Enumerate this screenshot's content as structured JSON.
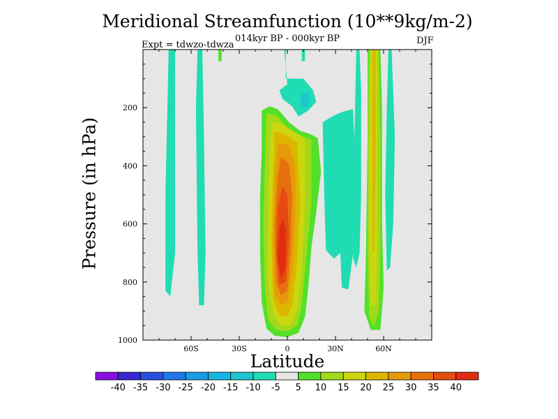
{
  "chart_data": {
    "type": "heatmap",
    "title": "Meridional Streamfunction (10**9kg/m-2)",
    "subtitle": "014kyr BP - 000kyr BP",
    "left_note": "Expt = tdwzo-tdwza",
    "right_note": "DJF",
    "xlabel": "Latitude",
    "ylabel": "Pressure (in hPa)",
    "xlim": [
      -90,
      90
    ],
    "ylim": [
      0,
      1000
    ],
    "y_inverted": true,
    "x_ticks": [
      {
        "value": -60,
        "label": "60S"
      },
      {
        "value": -30,
        "label": "30S"
      },
      {
        "value": 0,
        "label": "0"
      },
      {
        "value": 30,
        "label": "30N"
      },
      {
        "value": 60,
        "label": "60N"
      }
    ],
    "y_ticks": [
      {
        "value": 200,
        "label": "200"
      },
      {
        "value": 400,
        "label": "400"
      },
      {
        "value": 600,
        "label": "600"
      },
      {
        "value": 800,
        "label": "800"
      },
      {
        "value": 1000,
        "label": "1000"
      }
    ],
    "background_color": "#e6e6e6",
    "contour_levels": [
      -40,
      -35,
      -30,
      -25,
      -20,
      -15,
      -10,
      -5,
      5,
      10,
      15,
      20,
      25,
      30,
      35,
      40
    ],
    "colorbar_colors": [
      "#8810e0",
      "#3526d6",
      "#2a4fe0",
      "#1e7be6",
      "#1c9ce8",
      "#16b6e0",
      "#1cc6cf",
      "#20dcb2",
      "#e6e6e6",
      "#52e02a",
      "#a2da1a",
      "#cad70f",
      "#ddb600",
      "#e69a0a",
      "#e7700e",
      "#e54a10",
      "#e02c10"
    ],
    "features": [
      {
        "name": "SH polar column",
        "level": -5,
        "color": "#20dcb2",
        "points": [
          [
            -74,
            0
          ],
          [
            -70,
            0
          ],
          [
            -70,
            700
          ],
          [
            -73,
            850
          ],
          [
            -76,
            830
          ],
          [
            -76,
            500
          ]
        ]
      },
      {
        "name": "SH midlat column",
        "level": -5,
        "color": "#20dcb2",
        "points": [
          [
            -56,
            0
          ],
          [
            -53,
            0
          ],
          [
            -52,
            300
          ],
          [
            -51,
            700
          ],
          [
            -52,
            880
          ],
          [
            -55,
            880
          ],
          [
            -56,
            700
          ],
          [
            -57,
            200
          ]
        ]
      },
      {
        "name": "SH top patch",
        "level": 5,
        "color": "#52e02a",
        "points": [
          [
            -43,
            0
          ],
          [
            -41,
            0
          ],
          [
            -41,
            40
          ],
          [
            -43,
            40
          ]
        ]
      },
      {
        "name": "Upper-level negative cell",
        "level": -5,
        "color": "#20dcb2",
        "points": [
          [
            -2,
            0
          ],
          [
            -1,
            0
          ],
          [
            -1,
            100
          ],
          [
            10,
            100
          ],
          [
            16,
            140
          ],
          [
            18,
            180
          ],
          [
            13,
            210
          ],
          [
            7,
            230
          ],
          [
            3,
            195
          ],
          [
            -3,
            170
          ],
          [
            -5,
            140
          ],
          [
            0,
            120
          ]
        ]
      },
      {
        "name": "Upper-level negative core",
        "level": -10,
        "color": "#1cc6cf",
        "points": [
          [
            9,
            150
          ],
          [
            13,
            150
          ],
          [
            14,
            180
          ],
          [
            12,
            200
          ],
          [
            9,
            195
          ],
          [
            8,
            175
          ]
        ]
      },
      {
        "name": "NH subtropical column",
        "level": -5,
        "color": "#20dcb2",
        "points": [
          [
            22,
            250
          ],
          [
            28,
            230
          ],
          [
            34,
            215
          ],
          [
            41,
            205
          ],
          [
            42,
            350
          ],
          [
            41,
            700
          ],
          [
            38,
            825
          ],
          [
            34,
            820
          ],
          [
            33,
            700
          ],
          [
            29,
            720
          ],
          [
            24,
            690
          ],
          [
            23,
            500
          ]
        ]
      },
      {
        "name": "Tropical positive column",
        "level": 5,
        "color": "#52e02a",
        "points": [
          [
            -16,
            210
          ],
          [
            -11,
            195
          ],
          [
            -6,
            205
          ],
          [
            1,
            250
          ],
          [
            8,
            280
          ],
          [
            14,
            290
          ],
          [
            19,
            305
          ],
          [
            21,
            420
          ],
          [
            18,
            560
          ],
          [
            15,
            680
          ],
          [
            13,
            820
          ],
          [
            11,
            920
          ],
          [
            7,
            975
          ],
          [
            0,
            990
          ],
          [
            -8,
            985
          ],
          [
            -13,
            960
          ],
          [
            -16,
            870
          ],
          [
            -17,
            700
          ],
          [
            -17,
            500
          ],
          [
            -16,
            350
          ]
        ]
      },
      {
        "name": "Tropical 10",
        "level": 10,
        "color": "#a2da1a",
        "points": [
          [
            -13,
            220
          ],
          [
            -7,
            225
          ],
          [
            1,
            275
          ],
          [
            10,
            300
          ],
          [
            15,
            310
          ],
          [
            15,
            520
          ],
          [
            12,
            700
          ],
          [
            9,
            880
          ],
          [
            6,
            950
          ],
          [
            0,
            970
          ],
          [
            -7,
            965
          ],
          [
            -12,
            930
          ],
          [
            -14,
            820
          ],
          [
            -15,
            600
          ],
          [
            -14,
            400
          ]
        ]
      },
      {
        "name": "Tropical 15",
        "level": 15,
        "color": "#cad70f",
        "points": [
          [
            -10,
            250
          ],
          [
            -4,
            255
          ],
          [
            5,
            285
          ],
          [
            11,
            310
          ],
          [
            11,
            540
          ],
          [
            9,
            760
          ],
          [
            6,
            900
          ],
          [
            2,
            950
          ],
          [
            -4,
            950
          ],
          [
            -9,
            910
          ],
          [
            -12,
            800
          ],
          [
            -12,
            550
          ],
          [
            -11,
            350
          ]
        ]
      },
      {
        "name": "Tropical 20",
        "level": 20,
        "color": "#ddb600",
        "points": [
          [
            -8,
            280
          ],
          [
            -2,
            290
          ],
          [
            6,
            320
          ],
          [
            8,
            520
          ],
          [
            6,
            740
          ],
          [
            3,
            880
          ],
          [
            0,
            920
          ],
          [
            -5,
            915
          ],
          [
            -9,
            860
          ],
          [
            -10,
            650
          ],
          [
            -9,
            450
          ]
        ]
      },
      {
        "name": "Tropical 25",
        "level": 25,
        "color": "#e69a0a",
        "points": [
          [
            -6,
            320
          ],
          [
            1,
            330
          ],
          [
            5,
            400
          ],
          [
            5,
            580
          ],
          [
            3,
            760
          ],
          [
            0,
            870
          ],
          [
            -4,
            880
          ],
          [
            -8,
            840
          ],
          [
            -9,
            650
          ],
          [
            -8,
            450
          ]
        ]
      },
      {
        "name": "Tropical 30",
        "level": 30,
        "color": "#e7700e",
        "points": [
          [
            -4,
            370
          ],
          [
            1,
            390
          ],
          [
            3,
            500
          ],
          [
            2,
            700
          ],
          [
            0,
            830
          ],
          [
            -4,
            845
          ],
          [
            -7,
            800
          ],
          [
            -8,
            600
          ],
          [
            -6,
            440
          ]
        ]
      },
      {
        "name": "Tropical 35",
        "level": 35,
        "color": "#e54a10",
        "points": [
          [
            -3,
            470
          ],
          [
            0,
            500
          ],
          [
            1,
            650
          ],
          [
            -1,
            800
          ],
          [
            -5,
            810
          ],
          [
            -7,
            700
          ],
          [
            -6,
            540
          ]
        ]
      },
      {
        "name": "Tropical core 40",
        "level": 40,
        "color": "#e02c10",
        "points": [
          [
            -3,
            580
          ],
          [
            -1,
            620
          ],
          [
            -1,
            750
          ],
          [
            -4,
            790
          ],
          [
            -6,
            720
          ],
          [
            -5,
            620
          ]
        ]
      },
      {
        "name": "NH midlat column",
        "level": 5,
        "color": "#52e02a",
        "points": [
          [
            50,
            0
          ],
          [
            58,
            0
          ],
          [
            59,
            200
          ],
          [
            59,
            600
          ],
          [
            60,
            820
          ],
          [
            58,
            965
          ],
          [
            52,
            965
          ],
          [
            48,
            900
          ],
          [
            49,
            700
          ],
          [
            50,
            300
          ]
        ]
      },
      {
        "name": "NH midlat 10",
        "level": 10,
        "color": "#a2da1a",
        "points": [
          [
            51,
            0
          ],
          [
            57,
            0
          ],
          [
            58,
            300
          ],
          [
            58,
            700
          ],
          [
            57,
            900
          ],
          [
            54,
            955
          ],
          [
            51,
            920
          ],
          [
            50,
            700
          ],
          [
            50,
            300
          ]
        ]
      },
      {
        "name": "NH midlat 15",
        "level": 15,
        "color": "#cad70f",
        "points": [
          [
            52,
            0
          ],
          [
            56,
            0
          ],
          [
            56,
            300
          ],
          [
            56,
            700
          ],
          [
            55,
            880
          ],
          [
            52,
            880
          ],
          [
            51,
            600
          ]
        ]
      },
      {
        "name": "NH midlat 20 core",
        "level": 20,
        "color": "#ddb600",
        "points": [
          [
            53,
            0
          ],
          [
            55,
            0
          ],
          [
            55,
            400
          ],
          [
            54,
            700
          ],
          [
            53,
            700
          ],
          [
            53,
            300
          ]
        ]
      },
      {
        "name": "NH polar column",
        "level": -5,
        "color": "#20dcb2",
        "points": [
          [
            43,
            0
          ],
          [
            45,
            0
          ],
          [
            46,
            150
          ],
          [
            46,
            500
          ],
          [
            45,
            700
          ],
          [
            43,
            750
          ],
          [
            41,
            720
          ],
          [
            41,
            500
          ],
          [
            42,
            250
          ]
        ]
      },
      {
        "name": "NH high-lat column",
        "level": -5,
        "color": "#20dcb2",
        "points": [
          [
            63,
            0
          ],
          [
            65,
            0
          ],
          [
            67,
            300
          ],
          [
            66,
            600
          ],
          [
            64,
            750
          ],
          [
            62,
            760
          ],
          [
            61,
            500
          ],
          [
            62,
            200
          ]
        ]
      },
      {
        "name": "NH upper patch",
        "level": -5,
        "color": "#20dcb2",
        "points": [
          [
            9,
            0
          ],
          [
            11,
            0
          ],
          [
            11,
            40
          ],
          [
            9,
            40
          ]
        ]
      }
    ]
  }
}
